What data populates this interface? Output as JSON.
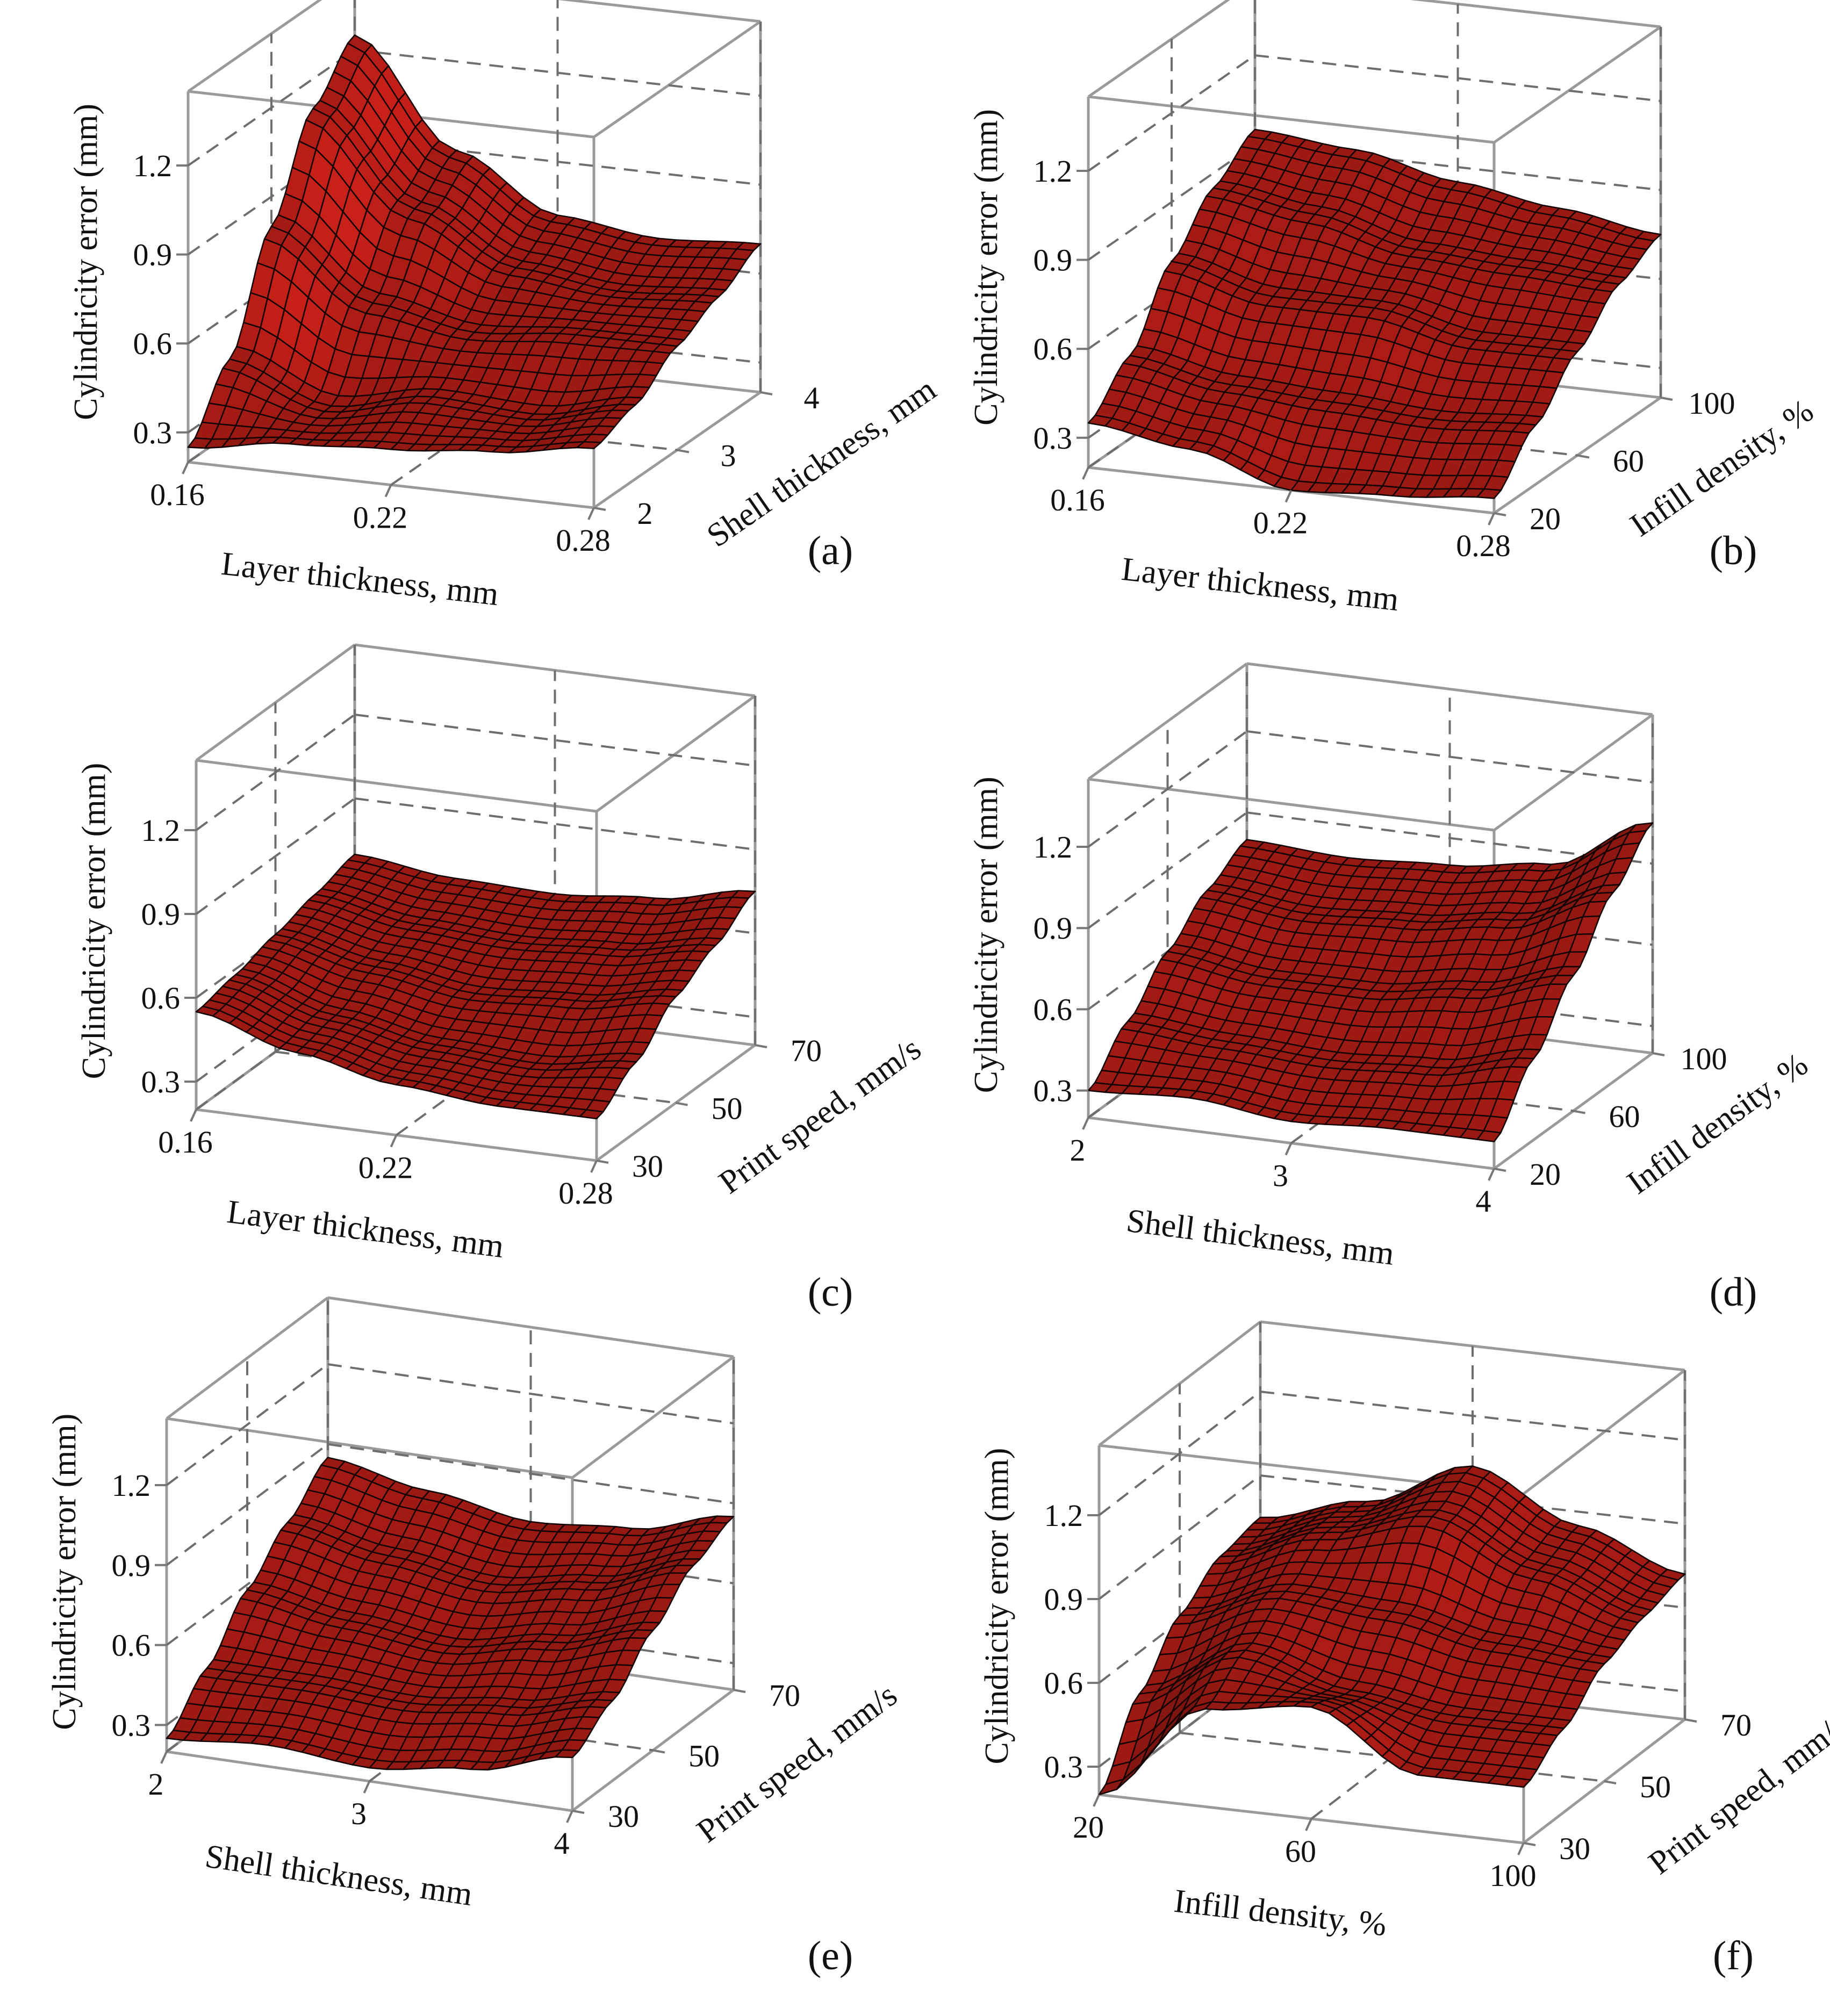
{
  "figure": {
    "surface_color": "#a01a14",
    "mesh_color": "#140404",
    "box_color": "#9a9a9a"
  },
  "chart_data": [
    {
      "panel": "(a)",
      "type": "surface",
      "zlabel": "Cylindricity  error (mm)",
      "zticks": [
        "0.3",
        "0.6",
        "0.9",
        "1.2"
      ],
      "zlim": [
        0.2,
        1.45
      ],
      "xlabel": "Layer thickness, mm",
      "xticks": [
        "0.16",
        "0.22",
        "0.28"
      ],
      "xlim": [
        0.16,
        0.28
      ],
      "ylabel": "Shell thickness, mm",
      "yticks": [
        "2",
        "3",
        "4"
      ],
      "ylim": [
        2,
        4
      ],
      "corner_values": [
        0.25,
        0.4,
        1.25,
        0.7
      ],
      "grid_values": [
        [
          0.25,
          0.3,
          0.32,
          0.35,
          0.4
        ],
        [
          0.45,
          0.33,
          0.4,
          0.38,
          0.45
        ],
        [
          0.8,
          0.58,
          0.52,
          0.55,
          0.55
        ],
        [
          1.1,
          0.8,
          0.64,
          0.6,
          0.62
        ],
        [
          1.25,
          0.9,
          0.72,
          0.68,
          0.7
        ]
      ]
    },
    {
      "panel": "(b)",
      "type": "surface",
      "zlabel": "Cylindricity  error (mm)",
      "zticks": [
        "0.3",
        "0.6",
        "0.9",
        "1.2"
      ],
      "zlim": [
        0.2,
        1.45
      ],
      "xlabel": "Layer thickness, mm",
      "xticks": [
        "0.16",
        "0.22",
        "0.28"
      ],
      "xlim": [
        0.16,
        0.28
      ],
      "ylabel": "Infill density, %",
      "yticks": [
        "20",
        "60",
        "100"
      ],
      "ylim": [
        20,
        100
      ],
      "corner_values": [
        0.35,
        0.25,
        0.95,
        0.75
      ],
      "grid_values": [
        [
          0.35,
          0.3,
          0.2,
          0.22,
          0.25
        ],
        [
          0.48,
          0.42,
          0.4,
          0.38,
          0.4
        ],
        [
          0.7,
          0.62,
          0.62,
          0.55,
          0.55
        ],
        [
          0.85,
          0.8,
          0.72,
          0.7,
          0.68
        ],
        [
          0.95,
          0.92,
          0.85,
          0.8,
          0.75
        ]
      ]
    },
    {
      "panel": "(c)",
      "type": "surface",
      "zlabel": "Cylindricity  error (mm)",
      "zticks": [
        "0.3",
        "0.6",
        "0.9",
        "1.2"
      ],
      "zlim": [
        0.2,
        1.45
      ],
      "xlabel": "Layer thickness, mm",
      "xticks": [
        "0.16",
        "0.22",
        "0.28"
      ],
      "xlim": [
        0.16,
        0.28
      ],
      "ylabel": "Print speed, mm/s",
      "yticks": [
        "30",
        "50",
        "70"
      ],
      "ylim": [
        30,
        70
      ],
      "corner_values": [
        0.55,
        0.35,
        0.7,
        0.75
      ],
      "grid_values": [
        [
          0.55,
          0.45,
          0.38,
          0.35,
          0.35
        ],
        [
          0.58,
          0.48,
          0.42,
          0.4,
          0.45
        ],
        [
          0.62,
          0.55,
          0.5,
          0.52,
          0.58
        ],
        [
          0.66,
          0.6,
          0.58,
          0.6,
          0.66
        ],
        [
          0.7,
          0.66,
          0.65,
          0.68,
          0.75
        ]
      ]
    },
    {
      "panel": "(d)",
      "type": "surface",
      "zlabel": "Cylindricity  error (mm)",
      "zticks": [
        "0.3",
        "0.6",
        "0.9",
        "1.2"
      ],
      "zlim": [
        0.2,
        1.45
      ],
      "xlabel": "Shell thickness, mm",
      "xticks": [
        "2",
        "3",
        "4"
      ],
      "xlim": [
        2,
        4
      ],
      "ylabel": "Infill density, %",
      "yticks": [
        "20",
        "60",
        "100"
      ],
      "ylim": [
        20,
        100
      ],
      "corner_values": [
        0.3,
        0.3,
        0.8,
        1.05
      ],
      "grid_values": [
        [
          0.3,
          0.32,
          0.28,
          0.3,
          0.3
        ],
        [
          0.45,
          0.42,
          0.4,
          0.42,
          0.5
        ],
        [
          0.6,
          0.55,
          0.55,
          0.6,
          0.7
        ],
        [
          0.72,
          0.68,
          0.7,
          0.75,
          0.9
        ],
        [
          0.8,
          0.78,
          0.8,
          0.85,
          1.05
        ]
      ]
    },
    {
      "panel": "(e)",
      "type": "surface",
      "zlabel": "Cylindricity  error (mm)",
      "zticks": [
        "0.3",
        "0.6",
        "0.9",
        "1.2"
      ],
      "zlim": [
        0.2,
        1.45
      ],
      "xlabel": "Shell thickness, mm",
      "xticks": [
        "2",
        "3",
        "4"
      ],
      "xlim": [
        2,
        4
      ],
      "ylabel": "Print speed, mm/s",
      "yticks": [
        "30",
        "50",
        "70"
      ],
      "ylim": [
        30,
        70
      ],
      "corner_values": [
        0.25,
        0.4,
        0.85,
        0.85
      ],
      "grid_values": [
        [
          0.25,
          0.28,
          0.25,
          0.3,
          0.4
        ],
        [
          0.4,
          0.4,
          0.38,
          0.42,
          0.5
        ],
        [
          0.58,
          0.52,
          0.48,
          0.55,
          0.65
        ],
        [
          0.72,
          0.65,
          0.6,
          0.66,
          0.78
        ],
        [
          0.85,
          0.78,
          0.72,
          0.75,
          0.85
        ]
      ]
    },
    {
      "panel": "(f)",
      "type": "surface",
      "zlabel": "Cylindricity  error (mm)",
      "zticks": [
        "0.3",
        "0.6",
        "0.9",
        "1.2"
      ],
      "zlim": [
        0.2,
        1.45
      ],
      "xlabel": "Infill density, %",
      "xticks": [
        "20",
        "60",
        "100"
      ],
      "xlim": [
        20,
        100
      ],
      "ylabel": "Print speed, mm/s",
      "yticks": [
        "30",
        "50",
        "70"
      ],
      "ylim": [
        30,
        70
      ],
      "corner_values": [
        0.2,
        0.4,
        0.75,
        0.72
      ],
      "grid_values": [
        [
          0.2,
          0.55,
          0.6,
          0.4,
          0.4
        ],
        [
          0.45,
          0.65,
          0.55,
          0.5,
          0.5
        ],
        [
          0.62,
          0.75,
          0.72,
          0.65,
          0.62
        ],
        [
          0.72,
          0.85,
          0.95,
          0.8,
          0.68
        ],
        [
          0.75,
          0.85,
          1.02,
          0.85,
          0.72
        ]
      ]
    }
  ]
}
